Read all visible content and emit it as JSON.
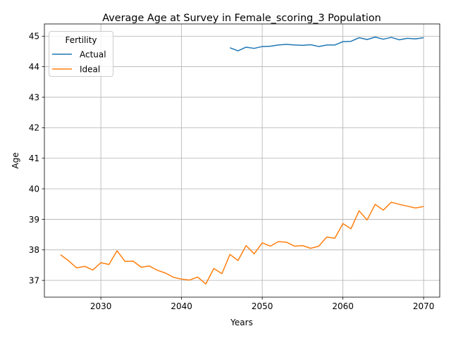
{
  "chart_data": {
    "type": "line",
    "title": "Average Age at Survey in Female_scoring_3 Population",
    "xlabel": "Years",
    "ylabel": "Age",
    "xlim": [
      2023,
      2072
    ],
    "ylim": [
      36.45,
      45.4
    ],
    "xticks": [
      2030,
      2040,
      2050,
      2060,
      2070
    ],
    "yticks": [
      37,
      38,
      39,
      40,
      41,
      42,
      43,
      44,
      45
    ],
    "grid": true,
    "legend": {
      "title": "Fertility",
      "placement": "upper-left"
    },
    "series": [
      {
        "name": "Actual",
        "color": "#1f77b4",
        "x": [
          2046,
          2047,
          2048,
          2049,
          2050,
          2051,
          2052,
          2053,
          2054,
          2055,
          2056,
          2057,
          2058,
          2059,
          2060,
          2061,
          2062,
          2063,
          2064,
          2065,
          2066,
          2067,
          2068,
          2069,
          2070
        ],
        "y": [
          44.62,
          44.52,
          44.64,
          44.6,
          44.66,
          44.67,
          44.71,
          44.73,
          44.71,
          44.7,
          44.72,
          44.66,
          44.71,
          44.71,
          44.82,
          44.83,
          44.95,
          44.89,
          44.97,
          44.9,
          44.96,
          44.88,
          44.93,
          44.91,
          44.95
        ]
      },
      {
        "name": "Ideal",
        "color": "#ff7f0e",
        "x": [
          2025,
          2026,
          2027,
          2028,
          2029,
          2030,
          2031,
          2032,
          2033,
          2034,
          2035,
          2036,
          2037,
          2038,
          2039,
          2040,
          2041,
          2042,
          2043,
          2044,
          2045,
          2046,
          2047,
          2048,
          2049,
          2050,
          2051,
          2052,
          2053,
          2054,
          2055,
          2056,
          2057,
          2058,
          2059,
          2060,
          2061,
          2062,
          2063,
          2064,
          2065,
          2066,
          2067,
          2068,
          2069,
          2070
        ],
        "y": [
          37.84,
          37.64,
          37.41,
          37.46,
          37.34,
          37.58,
          37.52,
          37.97,
          37.62,
          37.63,
          37.43,
          37.47,
          37.33,
          37.24,
          37.1,
          37.04,
          37.01,
          37.11,
          36.88,
          37.39,
          37.22,
          37.85,
          37.65,
          38.14,
          37.87,
          38.23,
          38.12,
          38.27,
          38.25,
          38.12,
          38.14,
          38.05,
          38.12,
          38.42,
          38.38,
          38.86,
          38.69,
          39.28,
          38.98,
          39.49,
          39.3,
          39.56,
          39.49,
          39.43,
          39.37,
          39.42
        ]
      }
    ]
  }
}
